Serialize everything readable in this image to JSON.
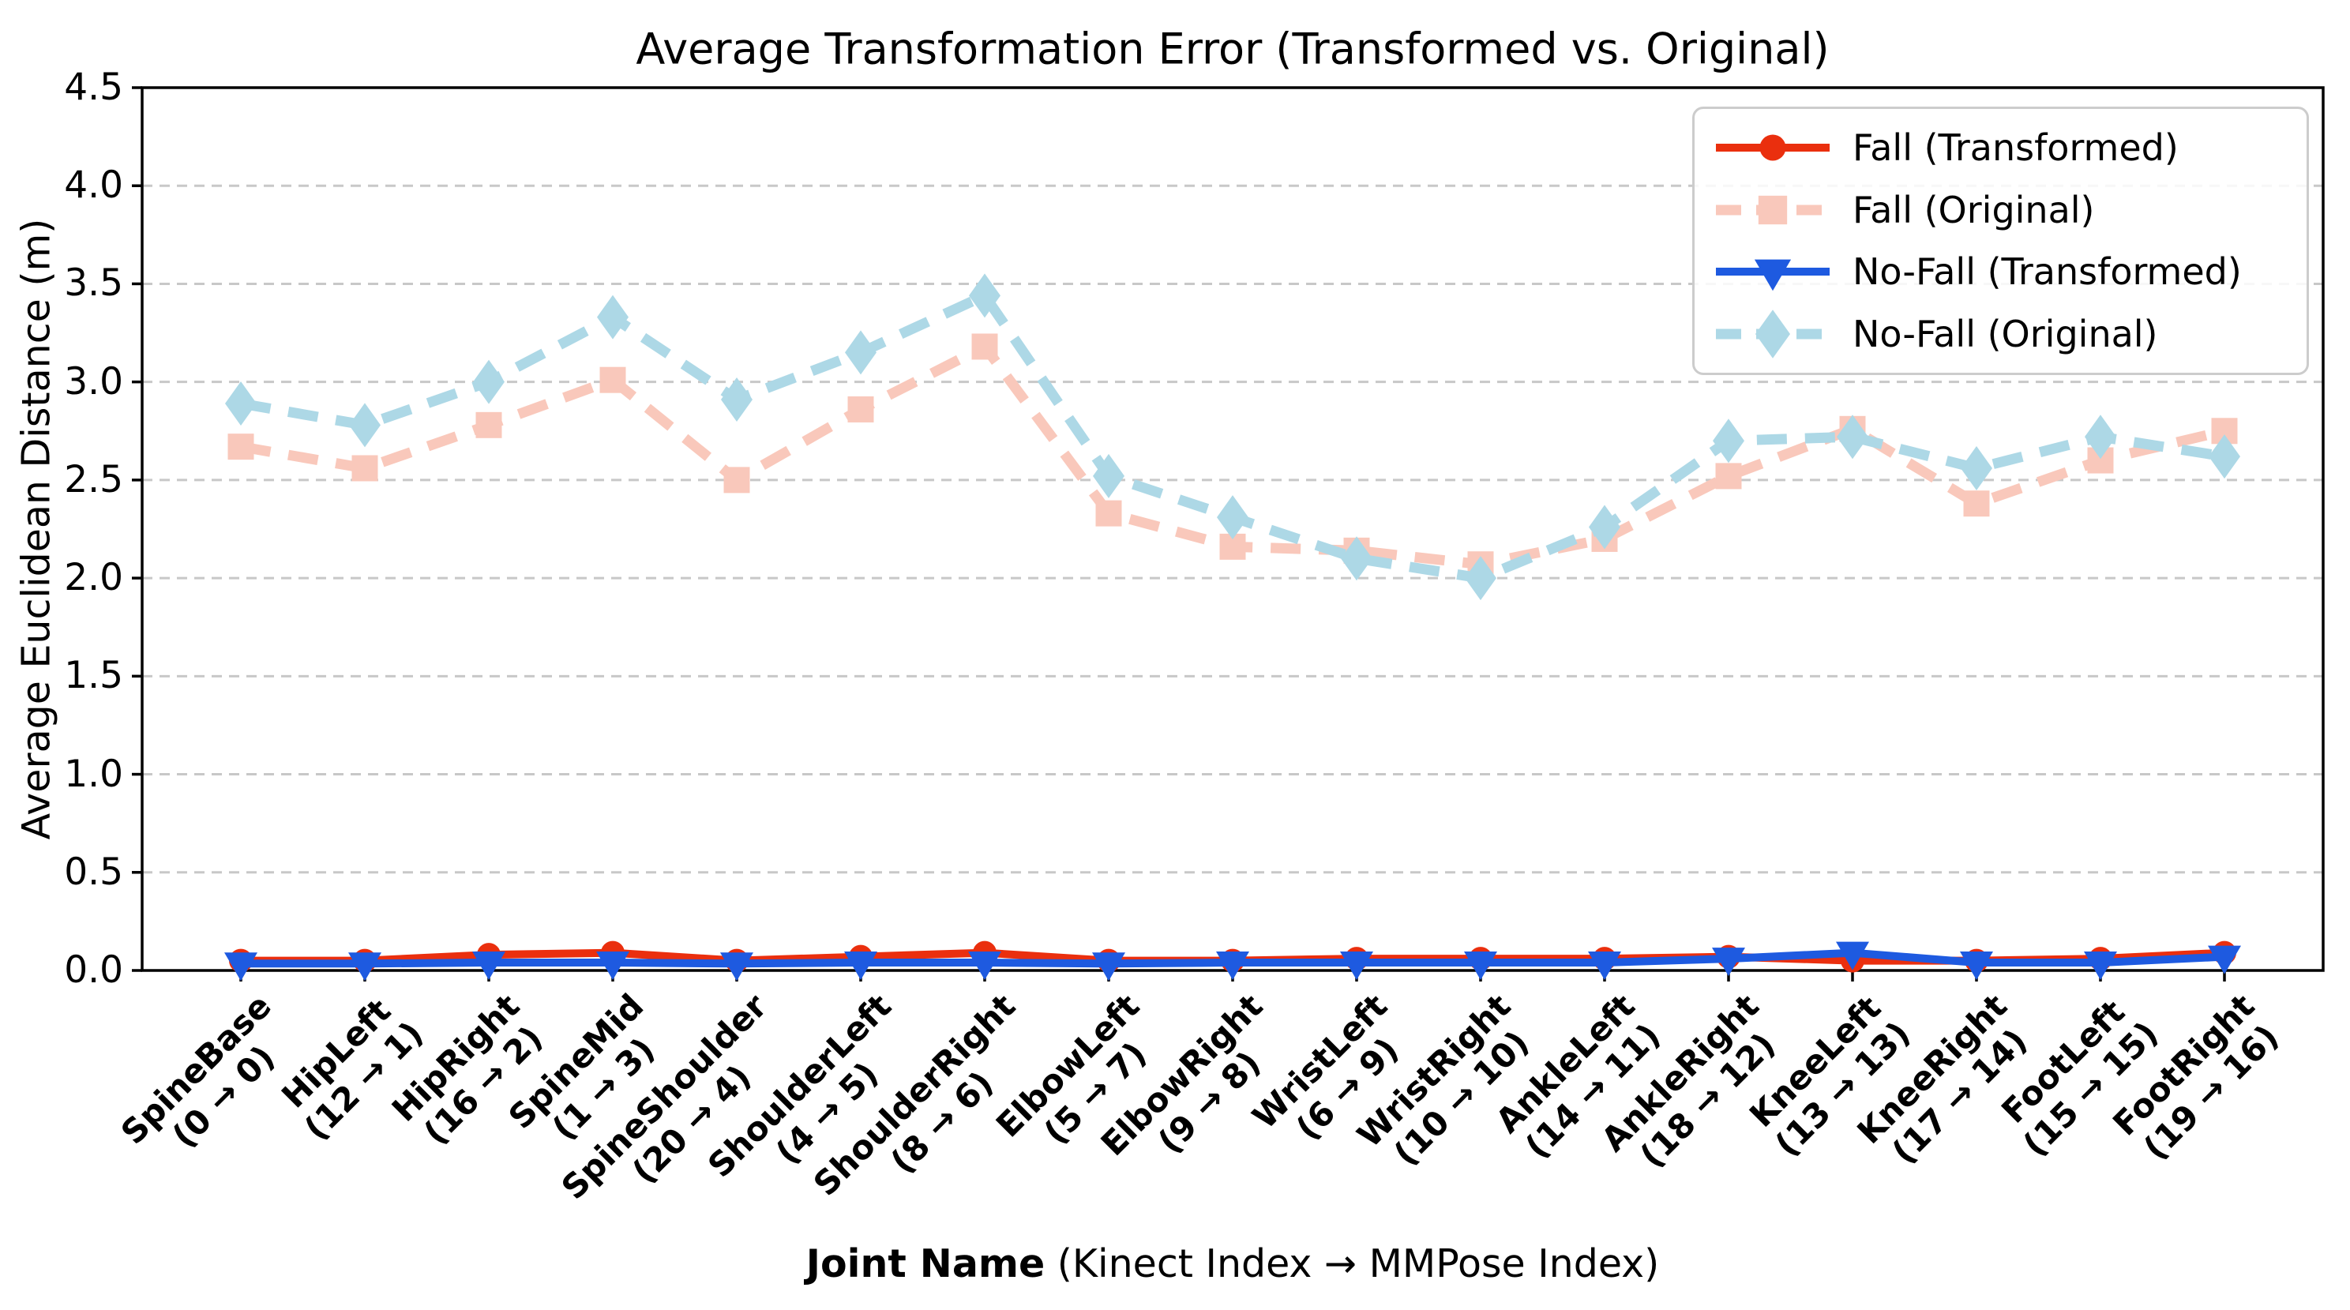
{
  "figure": {
    "title": "Average Transformation Error (Transformed vs. Original)",
    "y_axis_title": "Average Euclidean Distance (m)",
    "x_axis_title_bold": "Joint Name",
    "x_axis_title_rest": " (Kinect Index → MMPose Index)"
  },
  "chart_data": {
    "type": "line",
    "title": "Average Transformation Error (Transformed vs. Original)",
    "xlabel": "Joint Name (Kinect Index → MMPose Index)",
    "ylabel": "Average Euclidean Distance (m)",
    "ylim": [
      0,
      4.5
    ],
    "yticks": [
      "0.0",
      "0.5",
      "1.0",
      "1.5",
      "2.0",
      "2.5",
      "3.0",
      "3.5",
      "4.0",
      "4.5"
    ],
    "grid": true,
    "grid_color": "#C8C8C8",
    "axis_color": "#000000",
    "legend_position": "upper right",
    "categories": [
      {
        "joint": "SpineBase",
        "map": "(0 → 0)"
      },
      {
        "joint": "HipLeft",
        "map": "(12 → 1)"
      },
      {
        "joint": "HipRight",
        "map": "(16 → 2)"
      },
      {
        "joint": "SpineMid",
        "map": "(1 → 3)"
      },
      {
        "joint": "SpineShoulder",
        "map": "(20 → 4)"
      },
      {
        "joint": "ShoulderLeft",
        "map": "(4 → 5)"
      },
      {
        "joint": "ShoulderRight",
        "map": "(8 → 6)"
      },
      {
        "joint": "ElbowLeft",
        "map": "(5 → 7)"
      },
      {
        "joint": "ElbowRight",
        "map": "(9 → 8)"
      },
      {
        "joint": "WristLeft",
        "map": "(6 → 9)"
      },
      {
        "joint": "WristRight",
        "map": "(10 → 10)"
      },
      {
        "joint": "AnkleLeft",
        "map": "(14 → 11)"
      },
      {
        "joint": "AnkleRight",
        "map": "(18 → 12)"
      },
      {
        "joint": "KneeLeft",
        "map": "(13 → 13)"
      },
      {
        "joint": "KneeRight",
        "map": "(17 → 14)"
      },
      {
        "joint": "FootLeft",
        "map": "(15 → 15)"
      },
      {
        "joint": "FootRight",
        "map": "(19 → 16)"
      }
    ],
    "series": [
      {
        "name": "Fall (Transformed)",
        "color": "#EA2F0E",
        "line": "solid",
        "marker": "circle",
        "values": [
          0.05,
          0.05,
          0.08,
          0.09,
          0.05,
          0.07,
          0.09,
          0.05,
          0.05,
          0.06,
          0.06,
          0.06,
          0.07,
          0.05,
          0.05,
          0.06,
          0.09
        ]
      },
      {
        "name": "Fall (Original)",
        "color": "#F9C8BB",
        "line": "dashed",
        "marker": "square",
        "values": [
          2.67,
          2.56,
          2.78,
          3.01,
          2.5,
          2.86,
          3.18,
          2.33,
          2.16,
          2.14,
          2.07,
          2.2,
          2.52,
          2.76,
          2.38,
          2.6,
          2.75
        ]
      },
      {
        "name": "No-Fall (Transformed)",
        "color": "#1E5AE0",
        "line": "solid",
        "marker": "triangle-down",
        "values": [
          0.035,
          0.035,
          0.04,
          0.04,
          0.035,
          0.04,
          0.04,
          0.035,
          0.04,
          0.04,
          0.04,
          0.04,
          0.06,
          0.09,
          0.04,
          0.04,
          0.07
        ]
      },
      {
        "name": "No-Fall (Original)",
        "color": "#ADD8E6",
        "line": "dashed",
        "marker": "diamond",
        "values": [
          2.89,
          2.78,
          3.0,
          3.33,
          2.91,
          3.15,
          3.44,
          2.52,
          2.31,
          2.1,
          2.0,
          2.26,
          2.7,
          2.72,
          2.56,
          2.72,
          2.62
        ]
      }
    ]
  }
}
